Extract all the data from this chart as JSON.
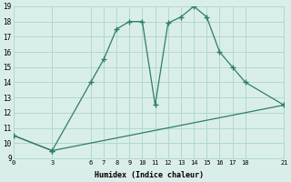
{
  "xlabel": "Humidex (Indice chaleur)",
  "line_color": "#2d7d6e",
  "bg_color": "#daeee9",
  "grid_color": "#b0d8d0",
  "curve1_x": [
    0,
    3,
    6,
    7,
    8,
    9,
    10,
    11,
    12,
    13,
    14,
    15,
    16,
    17,
    18,
    21
  ],
  "curve1_y": [
    10.5,
    9.5,
    14.0,
    15.5,
    17.5,
    18.0,
    18.0,
    12.5,
    17.9,
    18.3,
    19.0,
    18.3,
    16.0,
    15.0,
    14.0,
    12.5
  ],
  "curve2_x": [
    0,
    3,
    21
  ],
  "curve2_y": [
    10.5,
    9.5,
    12.5
  ],
  "xlim": [
    0,
    21
  ],
  "ylim": [
    9,
    19
  ],
  "xticks": [
    0,
    3,
    6,
    7,
    8,
    9,
    10,
    11,
    12,
    13,
    14,
    15,
    16,
    17,
    18,
    21
  ],
  "yticks": [
    9,
    10,
    11,
    12,
    13,
    14,
    15,
    16,
    17,
    18,
    19
  ]
}
